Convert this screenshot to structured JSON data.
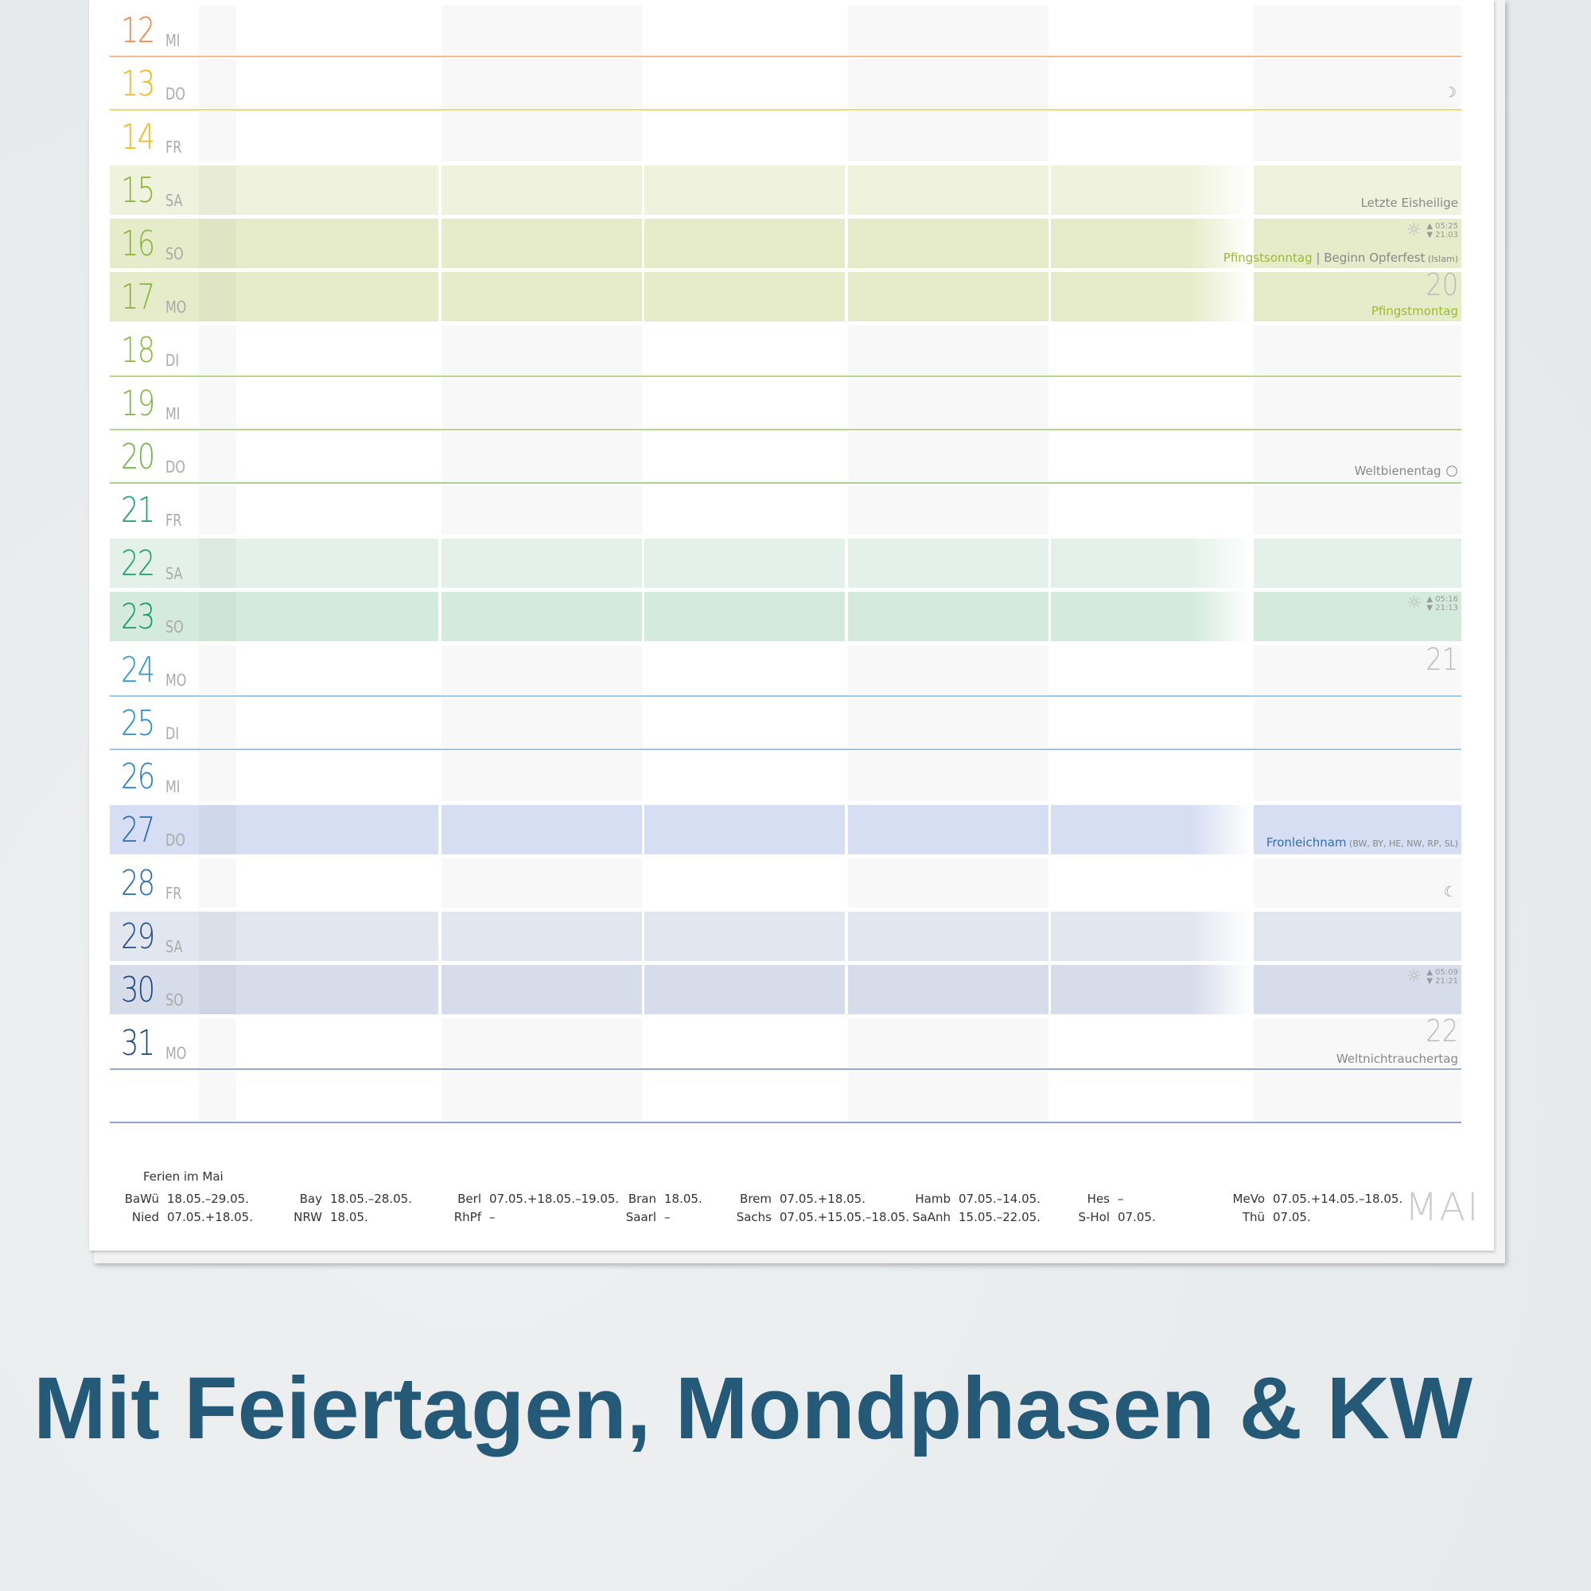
{
  "calendar": {
    "month_label": "MAI",
    "rows": [
      {
        "day": "12",
        "name": "MI",
        "color": "#f0894a",
        "line": "#f6b88f",
        "fill": null
      },
      {
        "day": "13",
        "name": "DO",
        "color": "#f5b90f",
        "line": "#f8d675",
        "fill": null,
        "moon": "☽"
      },
      {
        "day": "14",
        "name": "FR",
        "color": "#f5b90f",
        "line": null,
        "fill": null
      },
      {
        "day": "15",
        "name": "SA",
        "color": "#8db43c",
        "line": null,
        "fill": "#eff3dd",
        "annotation": {
          "text": "Letzte Eisheilige"
        }
      },
      {
        "day": "16",
        "name": "SO",
        "color": "#8db43c",
        "line": null,
        "fill": "#e6ecca",
        "sun": {
          "rise": "05:25",
          "set": "21:03"
        },
        "holiday": "Pfingstsonntag",
        "annotation": {
          "text": "Beginn Opferfest",
          "note": "(Islam)"
        }
      },
      {
        "day": "17",
        "name": "MO",
        "color": "#8db43c",
        "line": null,
        "fill": "#e6ecca",
        "kw": "20",
        "holiday": "Pfingstmontag"
      },
      {
        "day": "18",
        "name": "DI",
        "color": "#8dbb3f",
        "line": "#b7d88a",
        "fill": null
      },
      {
        "day": "19",
        "name": "MI",
        "color": "#7fb845",
        "line": "#b2d68c",
        "fill": null
      },
      {
        "day": "20",
        "name": "DO",
        "color": "#72b34a",
        "line": "#a9d290",
        "fill": null,
        "annotation": {
          "text": "Weltbienentag"
        },
        "moon": "○"
      },
      {
        "day": "21",
        "name": "FR",
        "color": "#1fa36a",
        "line": null,
        "fill": null
      },
      {
        "day": "22",
        "name": "SA",
        "color": "#1fa36a",
        "line": null,
        "fill": "#e4f1ea"
      },
      {
        "day": "23",
        "name": "SO",
        "color": "#179d5f",
        "line": null,
        "fill": "#d3eadd",
        "sun": {
          "rise": "05:16",
          "set": "21:13"
        }
      },
      {
        "day": "24",
        "name": "MO",
        "color": "#2a9bd4",
        "line": "#9dc8e8",
        "fill": null,
        "kw": "21"
      },
      {
        "day": "25",
        "name": "DI",
        "color": "#2a8fd0",
        "line": "#a2c4e6",
        "fill": null
      },
      {
        "day": "26",
        "name": "MI",
        "color": "#2a80c8",
        "line": null,
        "fill": null
      },
      {
        "day": "27",
        "name": "DO",
        "color": "#2e6cb5",
        "line": null,
        "fill": "#d5def2",
        "holiday_blue": "Fronleichnam",
        "annotation": {
          "note": "(BW, BY, HE, NW, RP, SL)"
        }
      },
      {
        "day": "28",
        "name": "FR",
        "color": "#2e6cb5",
        "line": null,
        "fill": null,
        "moon": "☾"
      },
      {
        "day": "29",
        "name": "SA",
        "color": "#23508c",
        "line": null,
        "fill": "#e2e6ef"
      },
      {
        "day": "30",
        "name": "SO",
        "color": "#1d4a86",
        "line": null,
        "fill": "#d6dcea",
        "sun": {
          "rise": "05:09",
          "set": "21:21"
        }
      },
      {
        "day": "31",
        "name": "MO",
        "color": "#1d4a86",
        "line": "#93a9cf",
        "fill": null,
        "kw": "22",
        "annotation": {
          "text": "Weltnichtrauchertag"
        }
      },
      {
        "day": "",
        "name": "",
        "color": "#1d4a86",
        "line": "#8ea4cc",
        "fill": null
      }
    ]
  },
  "footer": {
    "title": "Ferien im Mai",
    "entries": [
      {
        "state": "BaWü",
        "dates": "18.05.–29.05."
      },
      {
        "state": "Bay",
        "dates": "18.05.–28.05."
      },
      {
        "state": "Berl",
        "dates": "07.05.+18.05.–19.05."
      },
      {
        "state": "Bran",
        "dates": "18.05."
      },
      {
        "state": "Brem",
        "dates": "07.05.+18.05."
      },
      {
        "state": "Hamb",
        "dates": "07.05.–14.05."
      },
      {
        "state": "Hes",
        "dates": "–"
      },
      {
        "state": "MeVo",
        "dates": "07.05.+14.05.–18.05."
      },
      {
        "state": "Nied",
        "dates": "07.05.+18.05."
      },
      {
        "state": "NRW",
        "dates": "18.05."
      },
      {
        "state": "RhPf",
        "dates": "–"
      },
      {
        "state": "Saarl",
        "dates": "–"
      },
      {
        "state": "Sachs",
        "dates": "07.05.+15.05.–18.05."
      },
      {
        "state": "SaAnh",
        "dates": "15.05.–22.05."
      },
      {
        "state": "S-Hol",
        "dates": "07.05."
      },
      {
        "state": "Thü",
        "dates": "07.05."
      }
    ]
  },
  "headline": "Mit Feiertagen, Mondphasen & KW",
  "colors": {
    "headline": "#245a78",
    "holiday_green": "#9cbb2a",
    "holiday_blue": "#2f6fb8"
  }
}
